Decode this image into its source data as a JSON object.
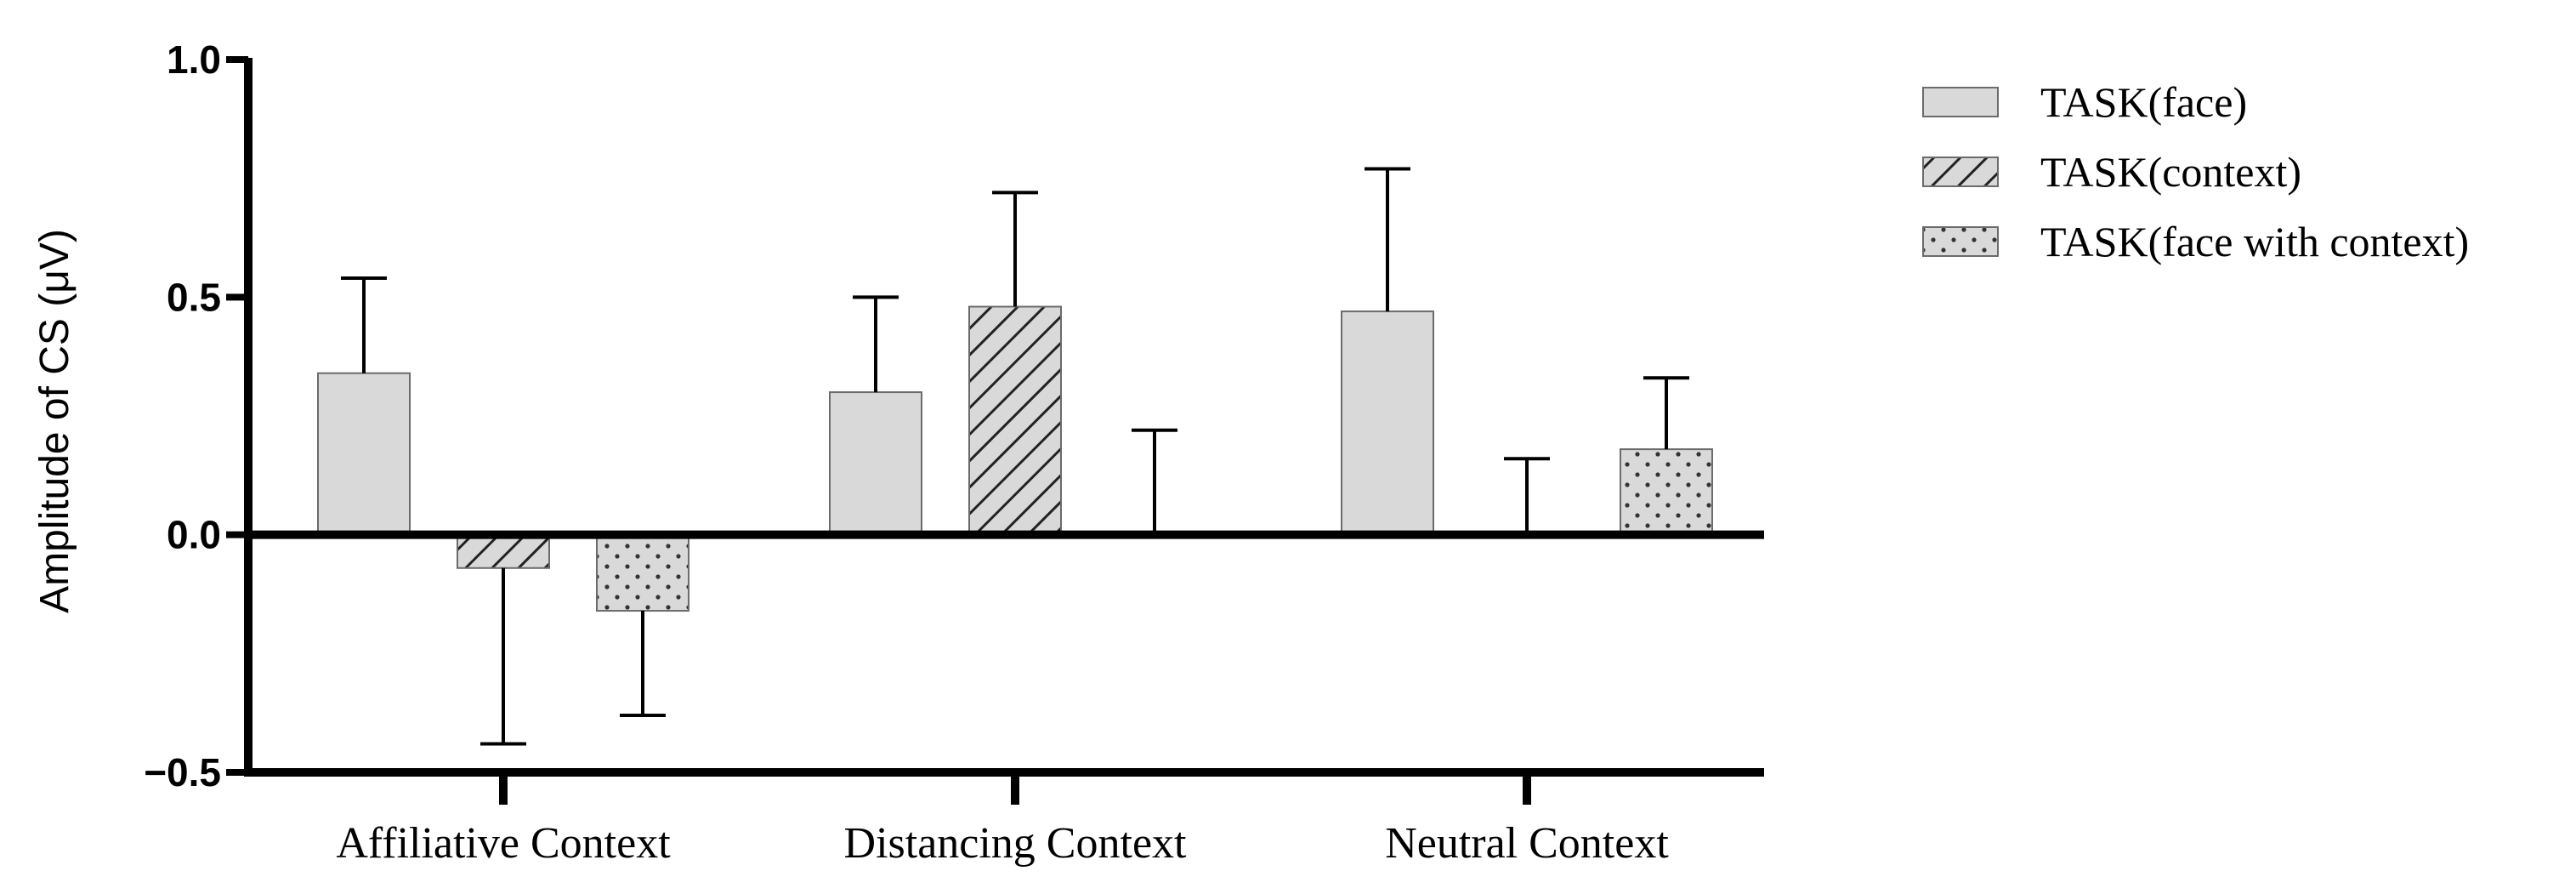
{
  "chart_data": {
    "type": "bar",
    "title": "",
    "xlabel": "",
    "ylabel": "Amplitude of CS (μV)",
    "ylim": [
      -0.5,
      1.0
    ],
    "yticks": [
      -0.5,
      0.0,
      0.5,
      1.0
    ],
    "ytick_labels": [
      "−0.5",
      "0.0",
      "0.5",
      "1.0"
    ],
    "categories": [
      "Affiliative Context",
      "Distancing Context",
      "Neutral Context"
    ],
    "error_bars": "one-sided, away from zero",
    "legend_position": "top-right, outside plot",
    "series": [
      {
        "name": "TASK(face)",
        "pattern": "solid",
        "fill": "#d9d9d9",
        "values": [
          0.34,
          0.3,
          0.47
        ],
        "errors": [
          0.2,
          0.2,
          0.3
        ]
      },
      {
        "name": "TASK(context)",
        "pattern": "diagonal-hatch",
        "fill": "#d9d9d9",
        "values": [
          -0.07,
          0.48,
          0.0
        ],
        "errors": [
          0.37,
          0.24,
          0.16
        ]
      },
      {
        "name": "TASK(face with context)",
        "pattern": "dots",
        "fill": "#d9d9d9",
        "values": [
          -0.16,
          0.0,
          0.18
        ],
        "errors": [
          0.22,
          0.22,
          0.15
        ]
      }
    ]
  }
}
